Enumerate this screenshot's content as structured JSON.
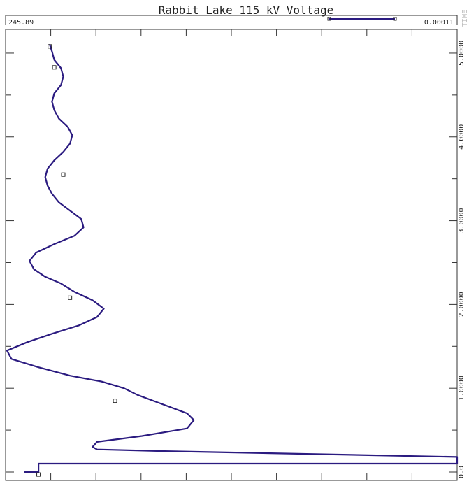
{
  "chart_data": {
    "type": "line",
    "title": "Rabbit Lake 115 kV Voltage",
    "x_min_label": "245.89",
    "x_max_label": "0.00011",
    "time_axis_label": "TIME",
    "time_tick_labels": [
      "0.0",
      "1.0000",
      "2.0000",
      "3.0000",
      "4.0000",
      "5.0000"
    ],
    "time_range": [
      0,
      5.25
    ],
    "value_range": [
      0,
      10
    ],
    "grid": false,
    "orientation": "time on vertical axis (right), value on horizontal axis",
    "series": [
      {
        "color": "#2b1b80",
        "time": [
          0.0,
          0.0,
          0.1,
          0.1,
          0.18,
          0.25,
          0.27,
          0.3,
          0.36,
          0.43,
          0.52,
          0.62,
          0.7,
          0.78,
          0.86,
          0.92,
          1.0,
          1.08,
          1.15,
          1.25,
          1.35,
          1.45,
          1.55,
          1.65,
          1.75,
          1.85,
          1.95,
          2.05,
          2.15,
          2.25,
          2.33,
          2.42,
          2.52,
          2.62,
          2.72,
          2.82,
          2.92,
          3.02,
          3.12,
          3.22,
          3.32,
          3.42,
          3.52,
          3.62,
          3.72,
          3.82,
          3.92,
          4.02,
          4.12,
          4.22,
          4.32,
          4.42,
          4.52,
          4.62,
          4.72,
          4.82,
          4.92,
          5.02,
          5.1
        ],
        "values": [
          0.4,
          0.7,
          0.7,
          10.0,
          10.0,
          3.4,
          2.0,
          1.9,
          2.0,
          3.0,
          4.0,
          4.15,
          4.0,
          3.6,
          3.2,
          2.9,
          2.6,
          2.1,
          1.4,
          0.7,
          0.1,
          0.0,
          0.45,
          1.0,
          1.6,
          2.0,
          2.15,
          1.9,
          1.5,
          1.2,
          0.85,
          0.6,
          0.5,
          0.65,
          1.05,
          1.5,
          1.7,
          1.65,
          1.4,
          1.15,
          1.0,
          0.9,
          0.85,
          0.9,
          1.05,
          1.25,
          1.4,
          1.45,
          1.35,
          1.15,
          1.05,
          1.0,
          1.05,
          1.2,
          1.25,
          1.2,
          1.05,
          1.0,
          0.95
        ]
      }
    ],
    "markers": [
      {
        "time": 5.08,
        "value": 0.95
      },
      {
        "time": 4.83,
        "value": 1.05
      },
      {
        "time": 3.55,
        "value": 1.25
      },
      {
        "time": 2.08,
        "value": 1.4
      },
      {
        "time": 0.85,
        "value": 2.4
      },
      {
        "time": -0.03,
        "value": 0.7
      }
    ]
  }
}
